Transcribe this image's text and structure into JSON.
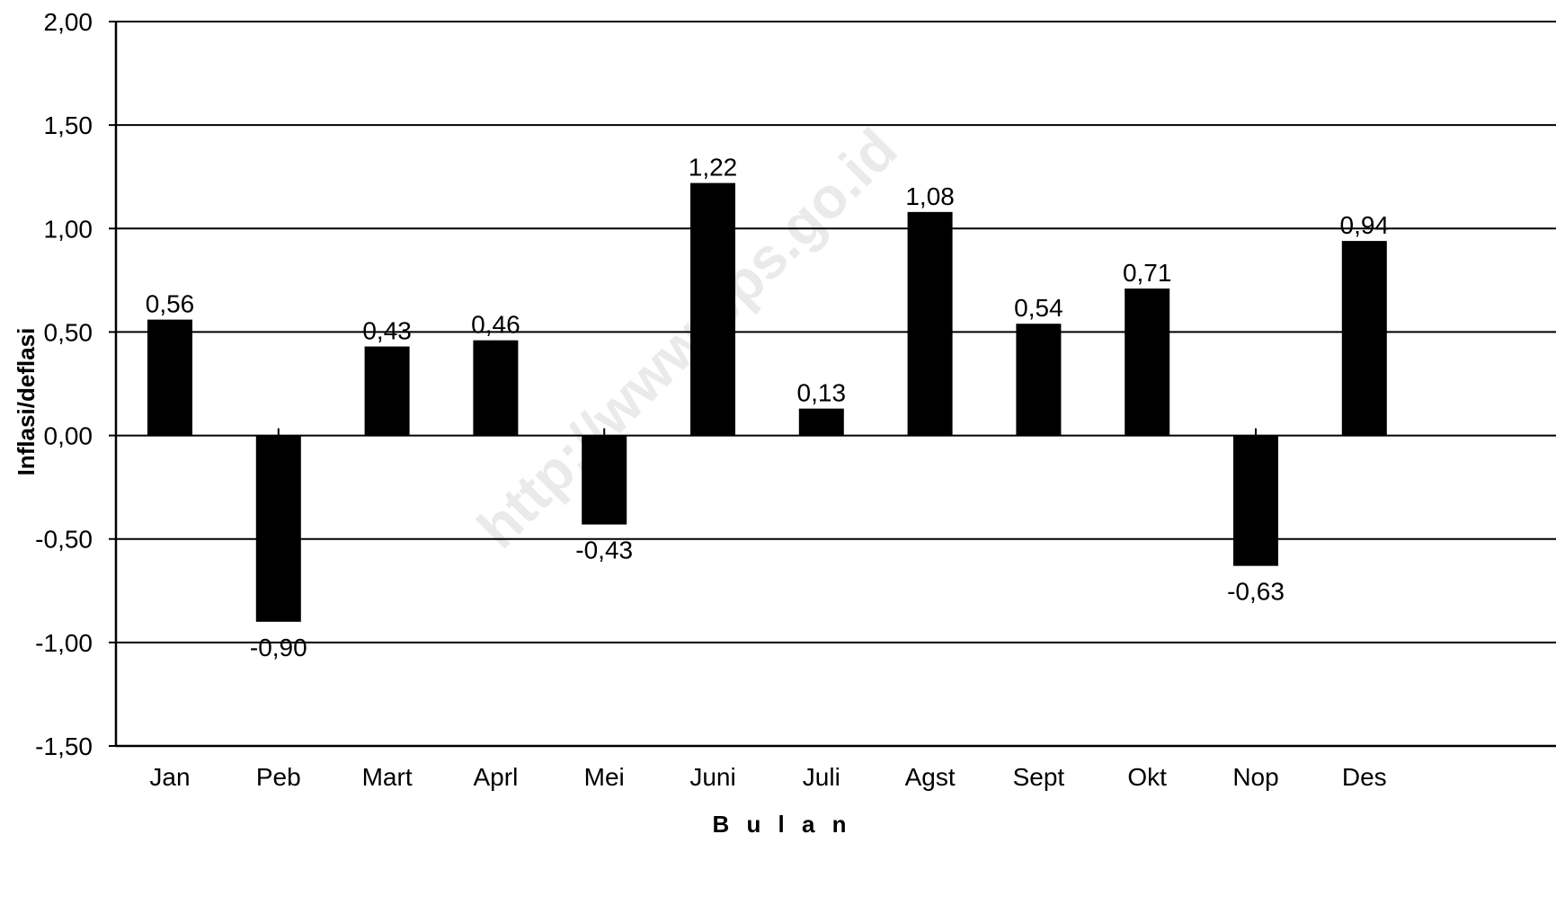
{
  "chart_data": {
    "type": "bar",
    "categories": [
      "Jan",
      "Peb",
      "Mart",
      "Aprl",
      "Mei",
      "Juni",
      "Juli",
      "Agst",
      "Sept",
      "Okt",
      "Nop",
      "Des"
    ],
    "values": [
      0.56,
      -0.9,
      0.43,
      0.46,
      -0.43,
      1.22,
      0.13,
      1.08,
      0.54,
      0.71,
      -0.63,
      0.94
    ],
    "value_labels": [
      "0,56",
      "-0,90",
      "0,43",
      "0,46",
      "-0,43",
      "1,22",
      "0,13",
      "1,08",
      "0,54",
      "0,71",
      "-0,63",
      "0,94"
    ],
    "title": "",
    "xlabel": "B u l a n",
    "ylabel": "Inflasi/deflasi",
    "ylim": [
      -1.5,
      2.0
    ],
    "yticks": [
      2.0,
      1.5,
      1.0,
      0.5,
      0.0,
      -0.5,
      -1.0,
      -1.5
    ],
    "ytick_labels": [
      "2,00",
      "1,50",
      "1,00",
      "0,50",
      "0,00",
      "-0,50",
      "-1,00",
      "-1,50"
    ],
    "grid": true,
    "bar_color": "#000000",
    "watermark": "http://www.bps.go.id"
  }
}
